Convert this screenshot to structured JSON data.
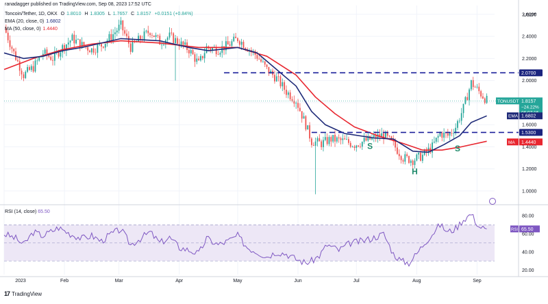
{
  "header": {
    "publisher": "ranadagger published on TradingView.com, Sep 08, 2023 17:52 UTC",
    "symbol_title": "Toncoin/Tether, 1D, OKX",
    "open_label": "O",
    "open": "1.8010",
    "high_label": "H",
    "high": "1.8305",
    "low_label": "L",
    "low": "1.7657",
    "close_label": "C",
    "close": "1.8157",
    "change": "+0.0151 (+0.84%)",
    "ema_label": "EMA (20, close, 0)",
    "ema_value": "1.6802",
    "ma_label": "MA (50, close, 0)",
    "ma_value": "1.4440"
  },
  "rsi_header": {
    "label": "RSI (14, close)",
    "value": "65.50"
  },
  "currency_label": "USDT",
  "branding": "TradingView",
  "colors": {
    "up": "#26a69a",
    "down": "#ef5350",
    "ema": "#1e2a78",
    "ma": "#e8262f",
    "rsi_line": "#7e57c2",
    "rsi_band": "#ede7f6",
    "dashed": "#1a1f9a",
    "grid": "#f0f3fa"
  },
  "chart_data": {
    "type": "candlestick",
    "title": "Toncoin/Tether, 1D, OKX",
    "price_axis": {
      "ticks": [
        1.0,
        1.2,
        1.4,
        1.6,
        1.8,
        2.0,
        2.2,
        2.4,
        2.6
      ],
      "tick_labels": [
        "1.0000",
        "1.2000",
        "1.4000",
        "1.6000",
        "1.8000",
        "2.0000",
        "2.2000",
        "2.4000",
        "2.6000"
      ]
    },
    "time_axis": {
      "labels": [
        "2023",
        "Feb",
        "Mar",
        "Apr",
        "May",
        "Jun",
        "Jul",
        "Aug",
        "Sep"
      ]
    },
    "resistance_levels": [
      {
        "value": 2.07,
        "label": "2.0700"
      },
      {
        "value": 1.53,
        "label": "1.5300"
      }
    ],
    "price_tags": [
      {
        "name": "TONUSDT",
        "value": "1.8157",
        "sub1": "−24.22%",
        "sub2": "06:07:16"
      },
      {
        "name": "EMA",
        "value": "1.6802"
      },
      {
        "name": "MA",
        "value": "1.4440"
      }
    ],
    "pattern_labels": [
      "S",
      "H",
      "S"
    ],
    "close_path": [
      [
        0,
        2.48
      ],
      [
        5,
        2.25
      ],
      [
        10,
        2.05
      ],
      [
        15,
        2.12
      ],
      [
        20,
        2.25
      ],
      [
        25,
        2.2
      ],
      [
        30,
        2.3
      ],
      [
        35,
        2.38
      ],
      [
        40,
        2.32
      ],
      [
        45,
        2.28
      ],
      [
        50,
        2.32
      ],
      [
        55,
        2.4
      ],
      [
        60,
        2.5
      ],
      [
        65,
        2.3
      ],
      [
        70,
        2.38
      ],
      [
        75,
        2.45
      ],
      [
        80,
        2.35
      ],
      [
        85,
        2.4
      ],
      [
        90,
        2.34
      ],
      [
        95,
        2.28
      ],
      [
        100,
        2.15
      ],
      [
        104,
        2.3
      ],
      [
        110,
        2.28
      ],
      [
        115,
        2.32
      ],
      [
        120,
        2.38
      ],
      [
        125,
        2.3
      ],
      [
        130,
        2.22
      ],
      [
        135,
        2.1
      ],
      [
        140,
        2.02
      ],
      [
        145,
        1.9
      ],
      [
        150,
        1.82
      ],
      [
        155,
        1.6
      ],
      [
        158,
        1.45
      ],
      [
        163,
        1.43
      ],
      [
        168,
        1.47
      ],
      [
        175,
        1.45
      ],
      [
        180,
        1.42
      ],
      [
        185,
        1.45
      ],
      [
        190,
        1.48
      ],
      [
        195,
        1.51
      ],
      [
        200,
        1.42
      ],
      [
        205,
        1.3
      ],
      [
        210,
        1.28
      ],
      [
        215,
        1.32
      ],
      [
        220,
        1.4
      ],
      [
        224,
        1.52
      ],
      [
        228,
        1.5
      ],
      [
        232,
        1.58
      ],
      [
        236,
        1.75
      ],
      [
        240,
        1.98
      ],
      [
        244,
        1.9
      ],
      [
        248,
        1.82
      ]
    ],
    "ema": {
      "name": "EMA (20, close, 0)",
      "path": [
        [
          0,
          2.25
        ],
        [
          10,
          2.2
        ],
        [
          20,
          2.22
        ],
        [
          30,
          2.27
        ],
        [
          40,
          2.3
        ],
        [
          60,
          2.38
        ],
        [
          80,
          2.36
        ],
        [
          95,
          2.3
        ],
        [
          105,
          2.27
        ],
        [
          120,
          2.3
        ],
        [
          130,
          2.25
        ],
        [
          140,
          2.1
        ],
        [
          150,
          1.95
        ],
        [
          158,
          1.72
        ],
        [
          165,
          1.6
        ],
        [
          175,
          1.52
        ],
        [
          190,
          1.48
        ],
        [
          200,
          1.47
        ],
        [
          210,
          1.36
        ],
        [
          218,
          1.35
        ],
        [
          226,
          1.42
        ],
        [
          234,
          1.5
        ],
        [
          240,
          1.62
        ],
        [
          248,
          1.68
        ]
      ]
    },
    "ma": {
      "name": "MA (50, close, 0)",
      "path": [
        [
          0,
          2.1
        ],
        [
          15,
          2.2
        ],
        [
          30,
          2.28
        ],
        [
          45,
          2.33
        ],
        [
          60,
          2.36
        ],
        [
          80,
          2.34
        ],
        [
          100,
          2.3
        ],
        [
          120,
          2.3
        ],
        [
          135,
          2.22
        ],
        [
          150,
          2.05
        ],
        [
          160,
          1.85
        ],
        [
          170,
          1.7
        ],
        [
          180,
          1.58
        ],
        [
          192,
          1.5
        ],
        [
          205,
          1.43
        ],
        [
          215,
          1.37
        ],
        [
          225,
          1.37
        ],
        [
          235,
          1.4
        ],
        [
          248,
          1.45
        ]
      ]
    },
    "rsi": {
      "name": "RSI (14, close)",
      "ticks": [
        20,
        40,
        60,
        80
      ],
      "tick_labels": [
        "20.00",
        "40.00",
        "60.00",
        "80.00"
      ],
      "band": [
        30,
        70
      ],
      "path": [
        [
          0,
          60
        ],
        [
          6,
          55
        ],
        [
          10,
          48
        ],
        [
          15,
          62
        ],
        [
          20,
          58
        ],
        [
          28,
          67
        ],
        [
          34,
          60
        ],
        [
          40,
          55
        ],
        [
          45,
          58
        ],
        [
          50,
          52
        ],
        [
          55,
          60
        ],
        [
          60,
          65
        ],
        [
          65,
          48
        ],
        [
          70,
          55
        ],
        [
          75,
          62
        ],
        [
          80,
          50
        ],
        [
          85,
          56
        ],
        [
          90,
          45
        ],
        [
          95,
          42
        ],
        [
          100,
          38
        ],
        [
          104,
          55
        ],
        [
          110,
          48
        ],
        [
          115,
          52
        ],
        [
          120,
          58
        ],
        [
          125,
          45
        ],
        [
          130,
          40
        ],
        [
          135,
          35
        ],
        [
          140,
          40
        ],
        [
          145,
          38
        ],
        [
          150,
          32
        ],
        [
          155,
          28
        ],
        [
          158,
          30
        ],
        [
          162,
          36
        ],
        [
          166,
          48
        ],
        [
          172,
          42
        ],
        [
          178,
          50
        ],
        [
          184,
          52
        ],
        [
          190,
          56
        ],
        [
          195,
          60
        ],
        [
          200,
          38
        ],
        [
          204,
          30
        ],
        [
          208,
          28
        ],
        [
          212,
          38
        ],
        [
          216,
          50
        ],
        [
          220,
          60
        ],
        [
          224,
          70
        ],
        [
          228,
          62
        ],
        [
          232,
          66
        ],
        [
          236,
          76
        ],
        [
          240,
          82
        ],
        [
          244,
          68
        ],
        [
          248,
          65.5
        ]
      ]
    }
  }
}
